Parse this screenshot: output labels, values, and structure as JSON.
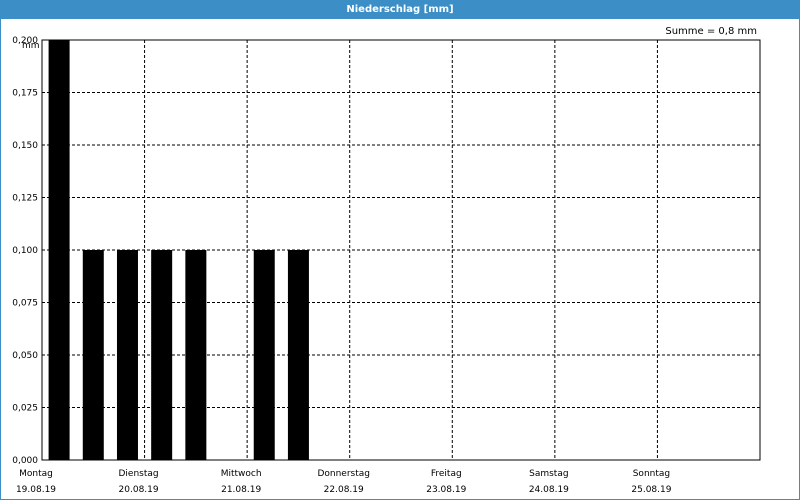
{
  "window": {
    "title": "Niederschlag [mm]"
  },
  "sum_label": "Summe = 0,8 mm",
  "colors": {
    "titlebar": "#3c8fc6",
    "bars": "#000000",
    "grid": "#000000",
    "background": "#ffffff"
  },
  "chart_data": {
    "type": "bar",
    "title": "Niederschlag [mm]",
    "ylabel": "mm",
    "xlabel": "",
    "ylim": [
      0,
      0.2
    ],
    "yticks": [
      "0,000",
      "0,025",
      "0,050",
      "0,075",
      "0,100",
      "0,125",
      "0,150",
      "0,175",
      "0,200"
    ],
    "days": [
      {
        "weekday": "Montag",
        "date": "19.08.19"
      },
      {
        "weekday": "Dienstag",
        "date": "20.08.19"
      },
      {
        "weekday": "Mittwoch",
        "date": "21.08.19"
      },
      {
        "weekday": "Donnerstag",
        "date": "22.08.19"
      },
      {
        "weekday": "Freitag",
        "date": "23.08.19"
      },
      {
        "weekday": "Samstag",
        "date": "24.08.19"
      },
      {
        "weekday": "Sonntag",
        "date": "25.08.19"
      }
    ],
    "bars_per_day": 3,
    "values": [
      0.2,
      0.1,
      0.1,
      0.1,
      0.1,
      0,
      0.1,
      0.1,
      0,
      0,
      0,
      0,
      0,
      0,
      0,
      0,
      0,
      0,
      0,
      0,
      0
    ],
    "grid": true
  }
}
